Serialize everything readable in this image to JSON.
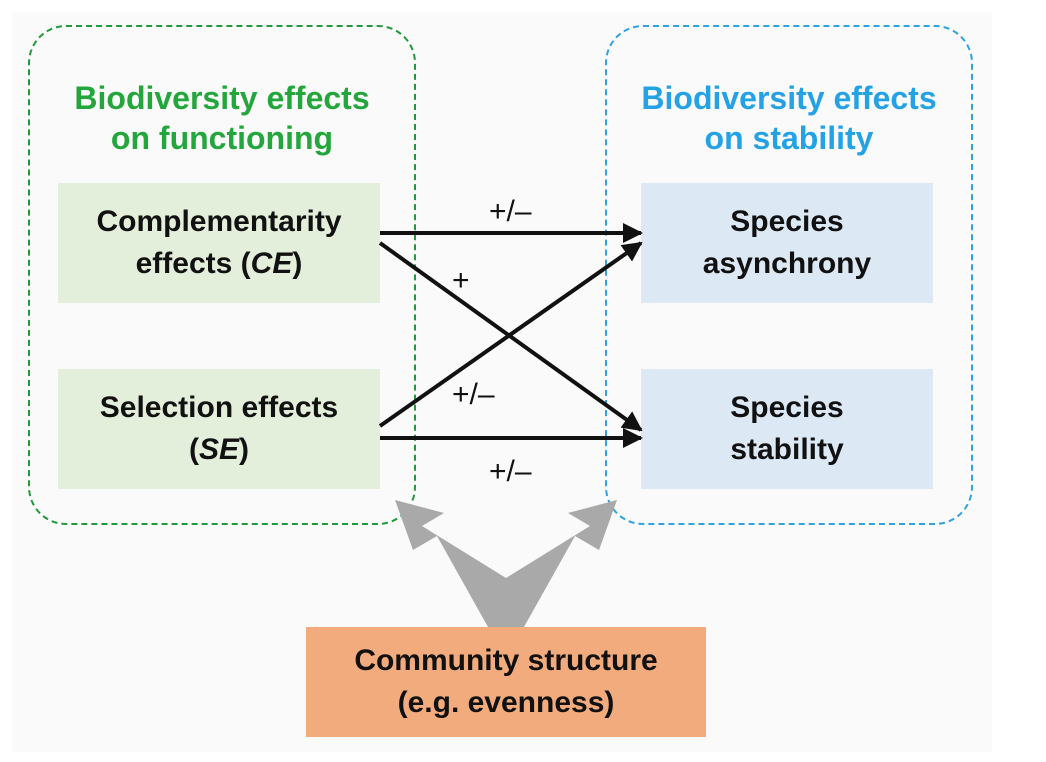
{
  "left_group": {
    "title_line1": "Biodiversity effects",
    "title_line2": "on functioning",
    "color": "#23a63b"
  },
  "right_group": {
    "title_line1": "Biodiversity effects",
    "title_line2": "on stability",
    "color": "#23a2e6"
  },
  "nodes": {
    "complementarity": {
      "line1": "Complementarity",
      "line2_prefix": "effects (",
      "line2_abbr": "CE",
      "line2_suffix": ")"
    },
    "selection": {
      "line1": "Selection effects",
      "line2_prefix": "(",
      "line2_abbr": "SE",
      "line2_suffix": ")"
    },
    "asynchrony": {
      "line1": "Species",
      "line2": "asynchrony"
    },
    "stability": {
      "line1": "Species",
      "line2": "stability"
    },
    "community": {
      "line1": "Community structure",
      "line2": "(e.g. evenness)"
    }
  },
  "links": [
    {
      "from": "complementarity",
      "to": "asynchrony",
      "sign": "+/–"
    },
    {
      "from": "complementarity",
      "to": "stability",
      "sign": "+"
    },
    {
      "from": "selection",
      "to": "asynchrony",
      "sign": "+/–"
    },
    {
      "from": "selection",
      "to": "stability",
      "sign": "+/–"
    }
  ],
  "colors": {
    "left_box": "#e4efdb",
    "right_box": "#dce9f5",
    "community_box": "#f2ab7d",
    "gray_arrow": "#a9a9a9"
  }
}
